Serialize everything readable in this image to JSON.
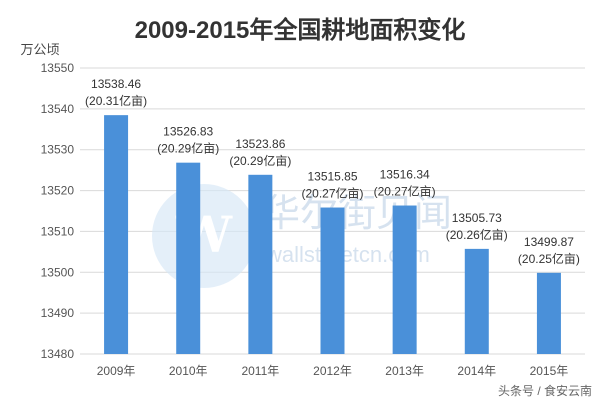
{
  "chart_data": {
    "type": "bar",
    "title": "2009-2015年全国耕地面积变化",
    "ylabel": "万公顷",
    "xlabel": "",
    "categories": [
      "2009年",
      "2010年",
      "2011年",
      "2012年",
      "2013年",
      "2014年",
      "2015年"
    ],
    "values": [
      13538.46,
      13526.83,
      13523.86,
      13515.85,
      13516.34,
      13505.73,
      13499.87
    ],
    "value_labels": [
      "13538.46",
      "13526.83",
      "13523.86",
      "13515.85",
      "13516.34",
      "13505.73",
      "13499.87"
    ],
    "secondary_labels": [
      "(20.31亿亩)",
      "(20.29亿亩)",
      "(20.29亿亩)",
      "(20.27亿亩)",
      "(20.27亿亩)",
      "(20.26亿亩)",
      "(20.25亿亩)"
    ],
    "ylim": [
      13480,
      13550
    ],
    "yticks": [
      13480,
      13490,
      13500,
      13510,
      13520,
      13530,
      13540,
      13550
    ],
    "grid": true,
    "legend": "none",
    "bar_color": "#4a90d9"
  },
  "watermark": {
    "text": "华尔街见闻",
    "url": "wallstreetcn.com"
  },
  "footer": {
    "source": "头条号 / 食安云南"
  }
}
